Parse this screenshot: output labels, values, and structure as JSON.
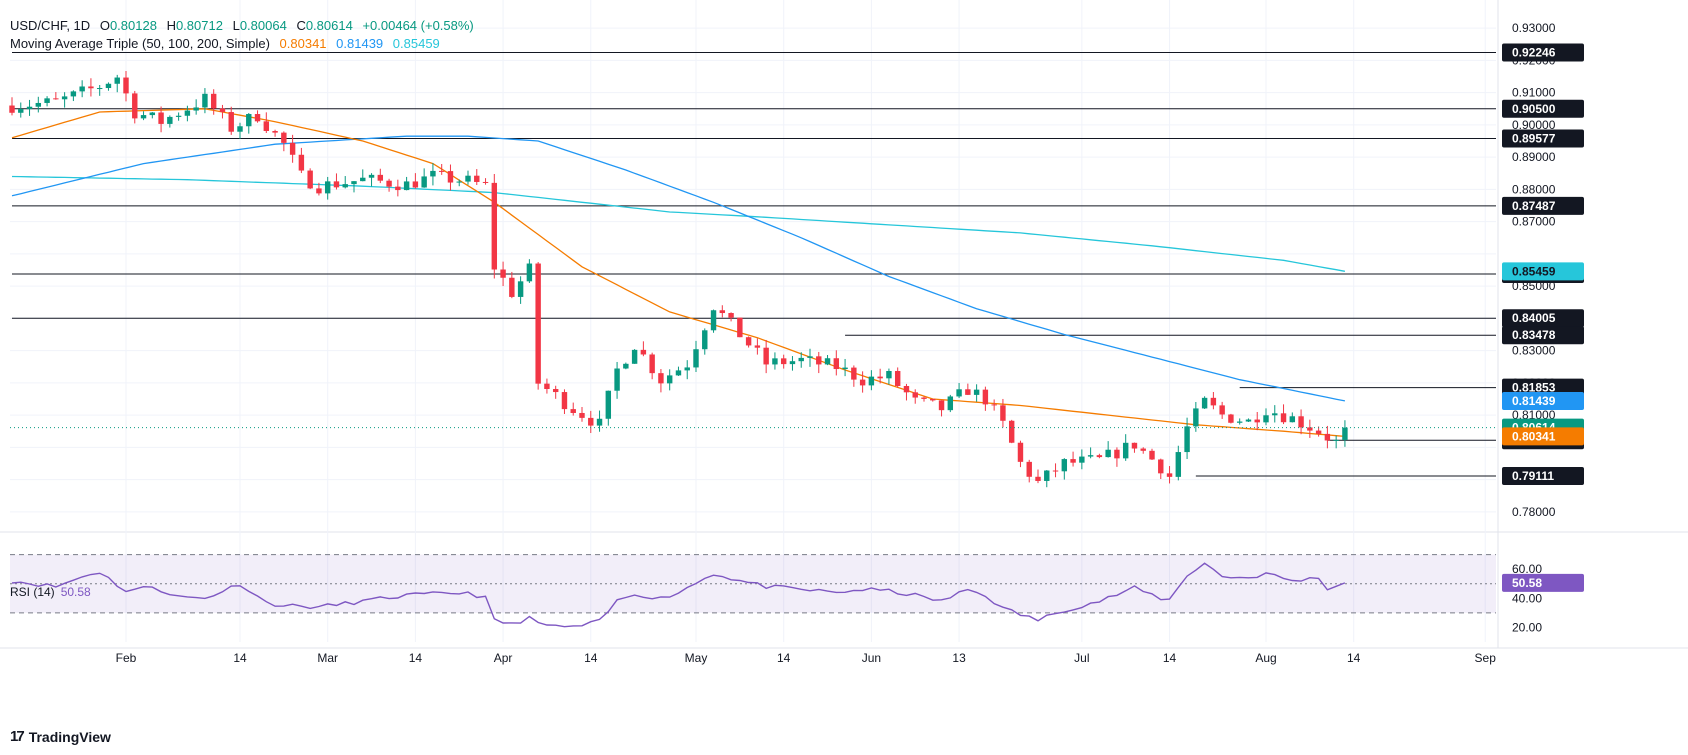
{
  "header": {
    "symbol": "USD/CHF, 1D",
    "open_label": "O",
    "open": "0.80128",
    "high_label": "H",
    "high": "0.80712",
    "low_label": "L",
    "low": "0.80064",
    "close_label": "C",
    "close": "0.80614",
    "change": "+0.00464 (+0.58%)",
    "ma_title": "Moving Average Triple (50, 100, 200, Simple)",
    "ma50_value": "0.80341",
    "ma100_value": "0.81439",
    "ma200_value": "0.85459"
  },
  "rsi_header": {
    "label": "RSI (14)",
    "value": "50.58"
  },
  "brand": {
    "name": "TradingView"
  },
  "colors": {
    "up": "#089981",
    "down": "#f23645",
    "ma50": "#f57c00",
    "ma100": "#2196f3",
    "ma200": "#26c6da",
    "rsi": "#7e57c2",
    "level": "#131722"
  },
  "chart_data": {
    "type": "candlestick",
    "symbol": "USD/CHF",
    "interval": "1D",
    "price_axis": {
      "range": [
        0.775,
        0.935
      ],
      "ticks": [
        0.78,
        0.79,
        0.8,
        0.81,
        0.82,
        0.83,
        0.84,
        0.85,
        0.86,
        0.87,
        0.88,
        0.89,
        0.9,
        0.91,
        0.92,
        0.93
      ],
      "tick_labels": [
        "0.78000",
        "",
        "",
        "0.81000",
        "0.82000",
        "0.83000",
        "",
        "0.85000",
        "",
        "0.87000",
        "0.88000",
        "0.89000",
        "0.90000",
        "0.91000",
        "0.92000",
        "0.93000"
      ]
    },
    "time_axis": {
      "labels": [
        "Feb",
        "14",
        "Mar",
        "14",
        "Apr",
        "14",
        "May",
        "14",
        "Jun",
        "13",
        "Jul",
        "14",
        "Aug",
        "14",
        "Sep"
      ],
      "label_index": [
        13,
        26,
        36,
        46,
        56,
        66,
        78,
        88,
        98,
        108,
        122,
        132,
        143,
        153,
        168
      ],
      "bar_count": 170
    },
    "horizontal_levels": [
      {
        "value": 0.92246,
        "label": "0.92246",
        "from_index": 0
      },
      {
        "value": 0.905,
        "label": "0.90500",
        "from_index": 0
      },
      {
        "value": 0.89577,
        "label": "0.89577",
        "from_index": 0
      },
      {
        "value": 0.87487,
        "label": "0.87487",
        "from_index": 0
      },
      {
        "value": 0.85375,
        "label": "0.85375",
        "from_index": 0
      },
      {
        "value": 0.84005,
        "label": "0.84005",
        "from_index": 0
      },
      {
        "value": 0.83478,
        "label": "0.83478",
        "from_index": 95
      },
      {
        "value": 0.81853,
        "label": "0.81853",
        "from_index": 140
      },
      {
        "value": 0.80221,
        "label": "0.80221",
        "from_index": 150
      },
      {
        "value": 0.79111,
        "label": "0.79111",
        "from_index": 135
      }
    ],
    "current_price": {
      "value": 0.80614,
      "label": "0.80614"
    },
    "ma_labels": [
      {
        "name": "MA 50",
        "value": 0.80341,
        "label": "0.80341"
      },
      {
        "name": "MA 100",
        "value": 0.81439,
        "label": "0.81439"
      },
      {
        "name": "MA 200",
        "value": 0.85459,
        "label": "0.85459"
      }
    ],
    "price_anchors": [
      [
        0,
        0.906
      ],
      [
        5,
        0.907
      ],
      [
        10,
        0.912
      ],
      [
        12,
        0.915
      ],
      [
        14,
        0.904
      ],
      [
        17,
        0.901
      ],
      [
        22,
        0.908
      ],
      [
        25,
        0.899
      ],
      [
        28,
        0.903
      ],
      [
        31,
        0.894
      ],
      [
        33,
        0.884
      ],
      [
        35,
        0.881
      ],
      [
        40,
        0.883
      ],
      [
        45,
        0.8815
      ],
      [
        48,
        0.884
      ],
      [
        52,
        0.8825
      ],
      [
        54,
        0.881
      ],
      [
        55,
        0.856
      ],
      [
        57,
        0.848
      ],
      [
        59,
        0.855
      ],
      [
        60,
        0.82
      ],
      [
        64,
        0.812
      ],
      [
        67,
        0.807
      ],
      [
        69,
        0.824
      ],
      [
        71,
        0.832
      ],
      [
        74,
        0.821
      ],
      [
        77,
        0.826
      ],
      [
        80,
        0.844
      ],
      [
        83,
        0.835
      ],
      [
        86,
        0.826
      ],
      [
        90,
        0.827
      ],
      [
        94,
        0.825
      ],
      [
        97,
        0.821
      ],
      [
        100,
        0.822
      ],
      [
        103,
        0.814
      ],
      [
        106,
        0.812
      ],
      [
        109,
        0.818
      ],
      [
        111,
        0.815
      ],
      [
        113,
        0.807
      ],
      [
        115,
        0.795
      ],
      [
        117,
        0.789
      ],
      [
        120,
        0.795
      ],
      [
        124,
        0.796
      ],
      [
        128,
        0.801
      ],
      [
        131,
        0.794
      ],
      [
        132,
        0.791
      ],
      [
        134,
        0.806
      ],
      [
        136,
        0.814
      ],
      [
        138,
        0.81
      ],
      [
        141,
        0.808
      ],
      [
        143,
        0.812
      ],
      [
        146,
        0.809
      ],
      [
        149,
        0.805
      ],
      [
        151,
        0.8015
      ],
      [
        152,
        0.8061
      ]
    ],
    "ma50": [
      [
        0,
        0.896
      ],
      [
        10,
        0.904
      ],
      [
        22,
        0.905
      ],
      [
        30,
        0.901
      ],
      [
        40,
        0.895
      ],
      [
        48,
        0.888
      ],
      [
        55,
        0.876
      ],
      [
        65,
        0.856
      ],
      [
        75,
        0.842
      ],
      [
        85,
        0.834
      ],
      [
        95,
        0.824
      ],
      [
        105,
        0.815
      ],
      [
        115,
        0.813
      ],
      [
        125,
        0.81
      ],
      [
        135,
        0.807
      ],
      [
        145,
        0.805
      ],
      [
        152,
        0.8034
      ]
    ],
    "ma100": [
      [
        0,
        0.878
      ],
      [
        15,
        0.888
      ],
      [
        30,
        0.894
      ],
      [
        45,
        0.8965
      ],
      [
        52,
        0.8965
      ],
      [
        60,
        0.895
      ],
      [
        70,
        0.886
      ],
      [
        80,
        0.876
      ],
      [
        90,
        0.865
      ],
      [
        100,
        0.853
      ],
      [
        110,
        0.843
      ],
      [
        120,
        0.835
      ],
      [
        130,
        0.828
      ],
      [
        140,
        0.821
      ],
      [
        152,
        0.8144
      ]
    ],
    "ma200": [
      [
        0,
        0.884
      ],
      [
        20,
        0.883
      ],
      [
        40,
        0.881
      ],
      [
        55,
        0.879
      ],
      [
        65,
        0.876
      ],
      [
        75,
        0.873
      ],
      [
        85,
        0.8715
      ],
      [
        100,
        0.869
      ],
      [
        115,
        0.8665
      ],
      [
        130,
        0.8625
      ],
      [
        145,
        0.858
      ],
      [
        152,
        0.8546
      ]
    ],
    "rsi": {
      "label": "RSI (14)",
      "value": 50.58,
      "range": [
        10,
        80
      ],
      "ticks": [
        20,
        40,
        60
      ],
      "tick_labels": [
        "20.00",
        "40.00",
        "60.00"
      ],
      "band": [
        30,
        70
      ],
      "midline": 50,
      "anchors": [
        [
          0,
          52
        ],
        [
          5,
          48
        ],
        [
          9,
          57
        ],
        [
          10,
          58
        ],
        [
          13,
          45
        ],
        [
          16,
          48
        ],
        [
          19,
          41
        ],
        [
          22,
          40
        ],
        [
          26,
          50
        ],
        [
          29,
          37
        ],
        [
          31,
          35
        ],
        [
          35,
          34
        ],
        [
          40,
          38
        ],
        [
          45,
          42
        ],
        [
          52,
          44
        ],
        [
          54,
          40
        ],
        [
          55,
          25
        ],
        [
          57,
          22
        ],
        [
          59,
          27
        ],
        [
          60,
          22
        ],
        [
          64,
          20
        ],
        [
          67,
          24
        ],
        [
          69,
          38
        ],
        [
          71,
          43
        ],
        [
          74,
          40
        ],
        [
          76,
          44
        ],
        [
          80,
          57
        ],
        [
          83,
          52
        ],
        [
          86,
          48
        ],
        [
          90,
          46
        ],
        [
          94,
          44
        ],
        [
          97,
          46
        ],
        [
          100,
          45
        ],
        [
          103,
          42
        ],
        [
          106,
          38
        ],
        [
          109,
          46
        ],
        [
          111,
          42
        ],
        [
          113,
          33
        ],
        [
          117,
          25
        ],
        [
          120,
          32
        ],
        [
          124,
          38
        ],
        [
          128,
          47
        ],
        [
          131,
          40
        ],
        [
          132,
          39
        ],
        [
          134,
          56
        ],
        [
          136,
          64
        ],
        [
          138,
          55
        ],
        [
          141,
          54
        ],
        [
          143,
          57
        ],
        [
          146,
          52
        ],
        [
          149,
          54
        ],
        [
          150,
          47
        ],
        [
          151,
          48
        ],
        [
          152,
          50.58
        ]
      ]
    }
  }
}
